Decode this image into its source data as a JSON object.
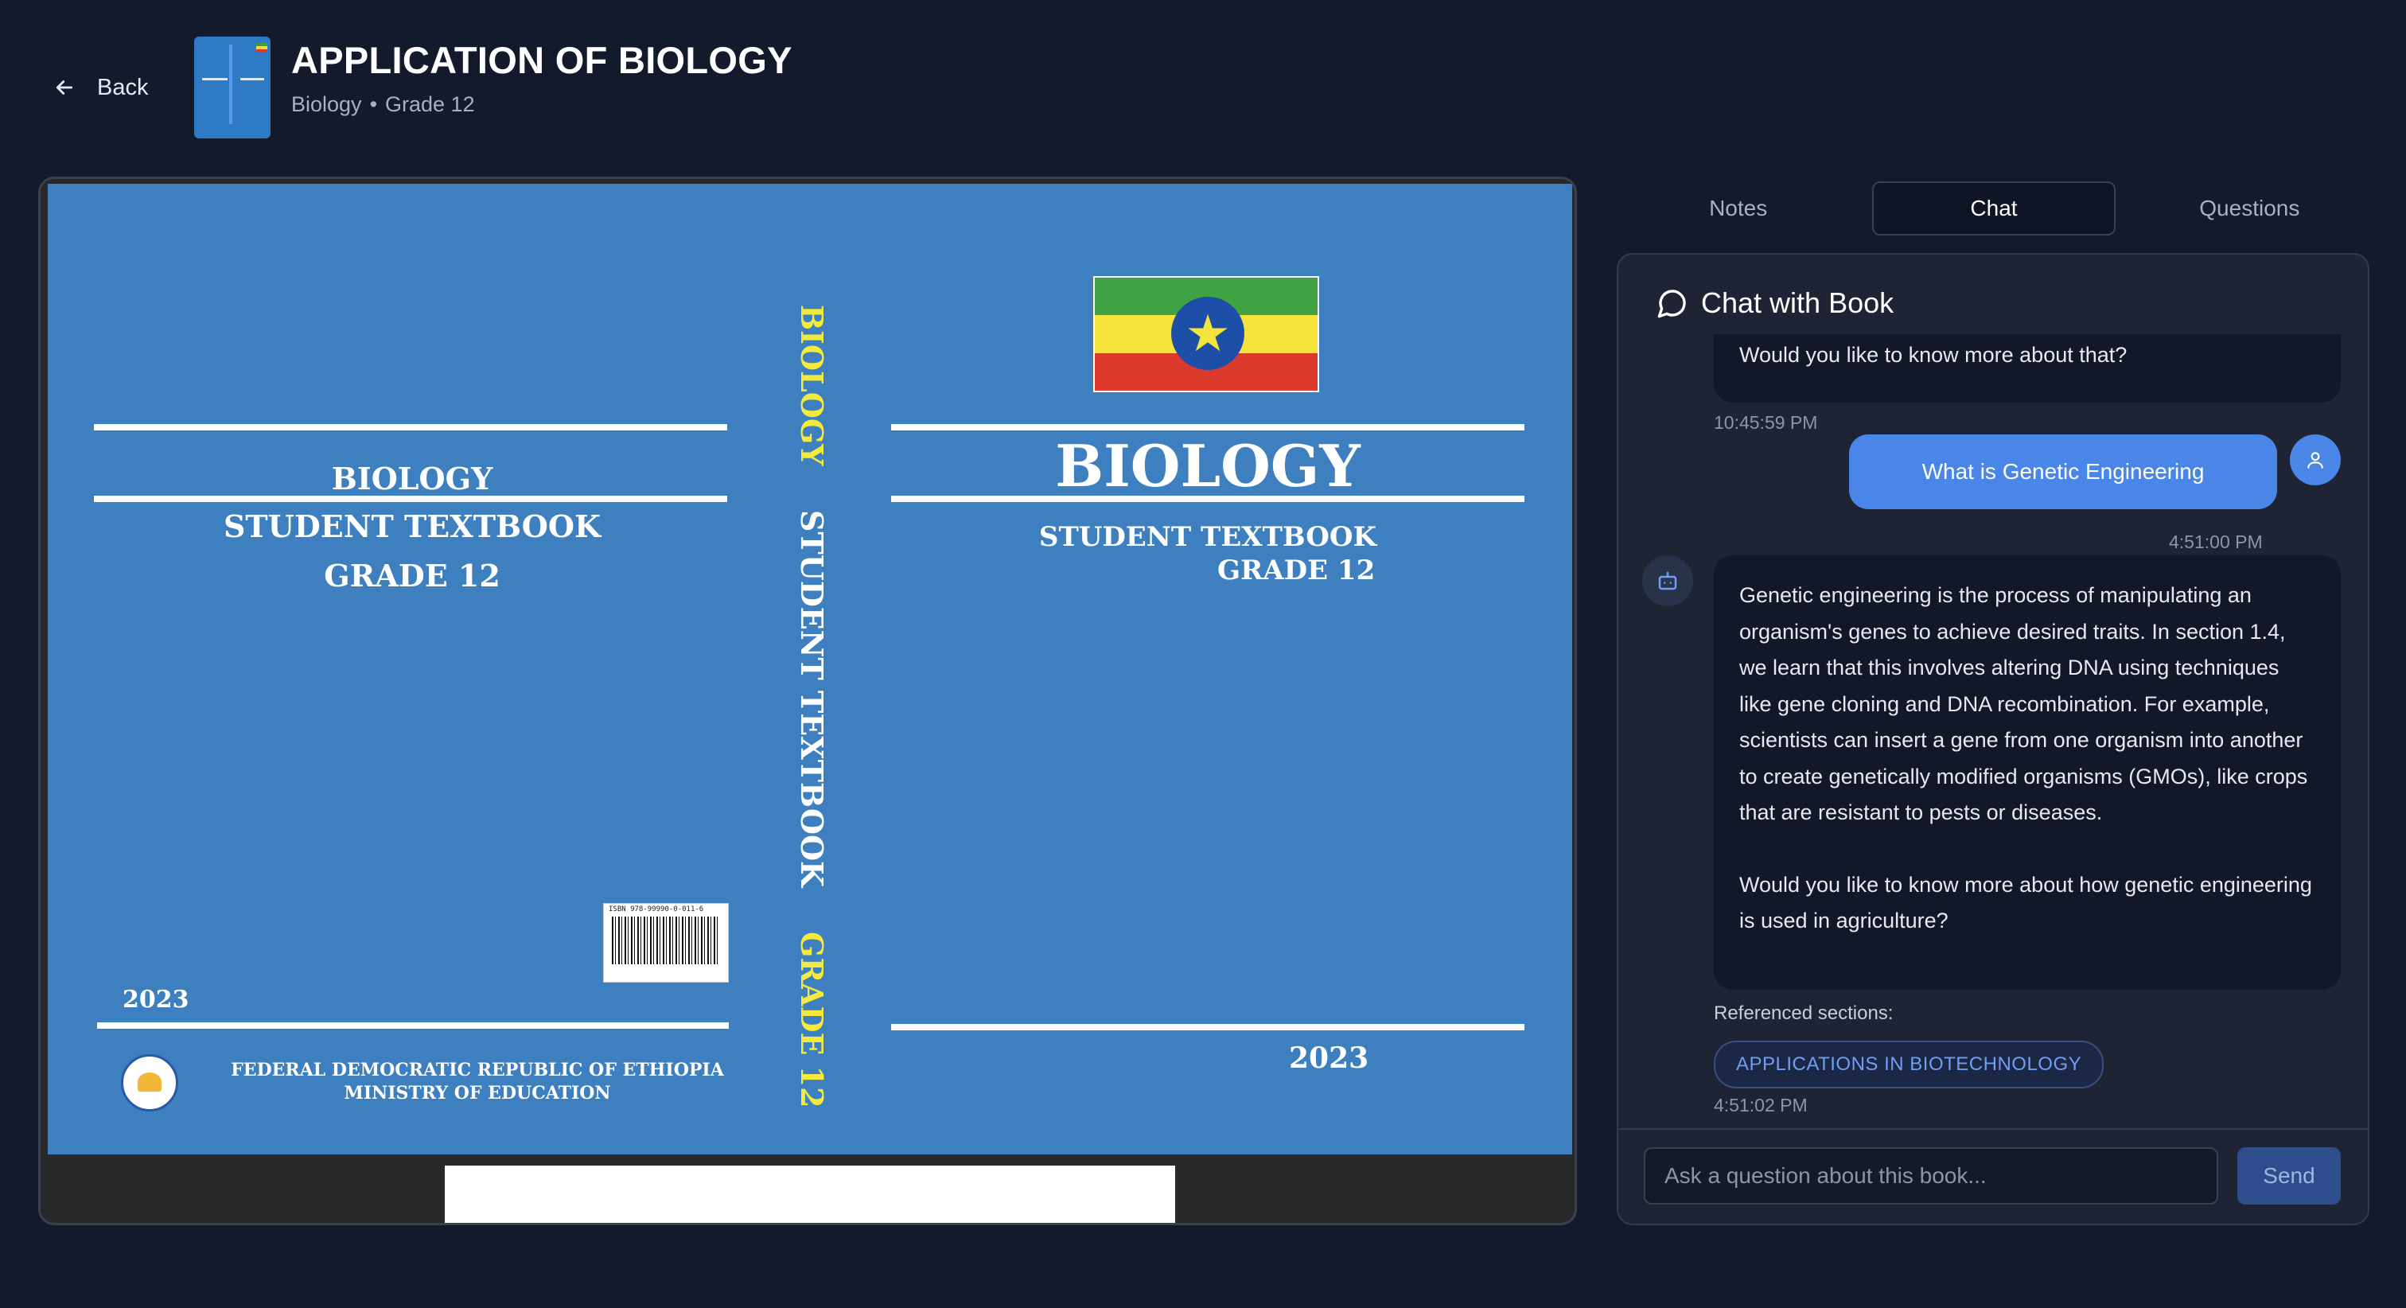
{
  "header": {
    "back_label": "Back",
    "title": "APPLICATION OF BIOLOGY",
    "subject": "Biology",
    "separator": "•",
    "grade": "Grade 12"
  },
  "cover": {
    "back_title": "BIOLOGY",
    "back_subtitle": "STUDENT TEXTBOOK",
    "back_grade": "GRADE 12",
    "back_year": "2023",
    "publisher_line1": "FEDERAL DEMOCRATIC REPUBLIC OF ETHIOPIA",
    "publisher_line2": "MINISTRY OF EDUCATION",
    "isbn": "ISBN 978-99990-0-011-6",
    "spine_title": "BIOLOGY",
    "spine_subtitle": "STUDENT TEXTBOOK",
    "spine_grade": "GRADE 12",
    "front_title": "BIOLOGY",
    "front_subtitle": "STUDENT TEXTBOOK",
    "front_grade": "GRADE 12",
    "front_year": "2023",
    "flag_colors": [
      "#3fa344",
      "#f5e43b",
      "#dc3a2d"
    ]
  },
  "tabs": [
    {
      "label": "Notes",
      "active": false
    },
    {
      "label": "Chat",
      "active": true
    },
    {
      "label": "Questions",
      "active": false
    }
  ],
  "chat": {
    "title": "Chat with Book",
    "messages": [
      {
        "role": "bot",
        "text": "Would you like to know more about that?",
        "time": "10:45:59 PM"
      },
      {
        "role": "user",
        "text": "What is Genetic Engineering",
        "time": "4:51:00 PM"
      },
      {
        "role": "bot",
        "paragraph1": "Genetic engineering is the process of manipulating an organism's genes to achieve desired traits. In section 1.4, we learn that this involves altering DNA using techniques like gene cloning and DNA recombination. For example, scientists can insert a gene from one organism into another to create genetically modified organisms (GMOs), like crops that are resistant to pests or diseases.",
        "paragraph2": "Would you like to know more about how genetic engineering is used in agriculture?",
        "time": "4:51:02 PM"
      }
    ],
    "referenced_label": "Referenced sections:",
    "referenced_sections": [
      "APPLICATIONS IN BIOTECHNOLOGY"
    ],
    "input_placeholder": "Ask a question about this book...",
    "send_label": "Send"
  },
  "colors": {
    "background": "#131a2b",
    "accent": "#4a86e8",
    "cover_blue": "#3e7fbf"
  }
}
